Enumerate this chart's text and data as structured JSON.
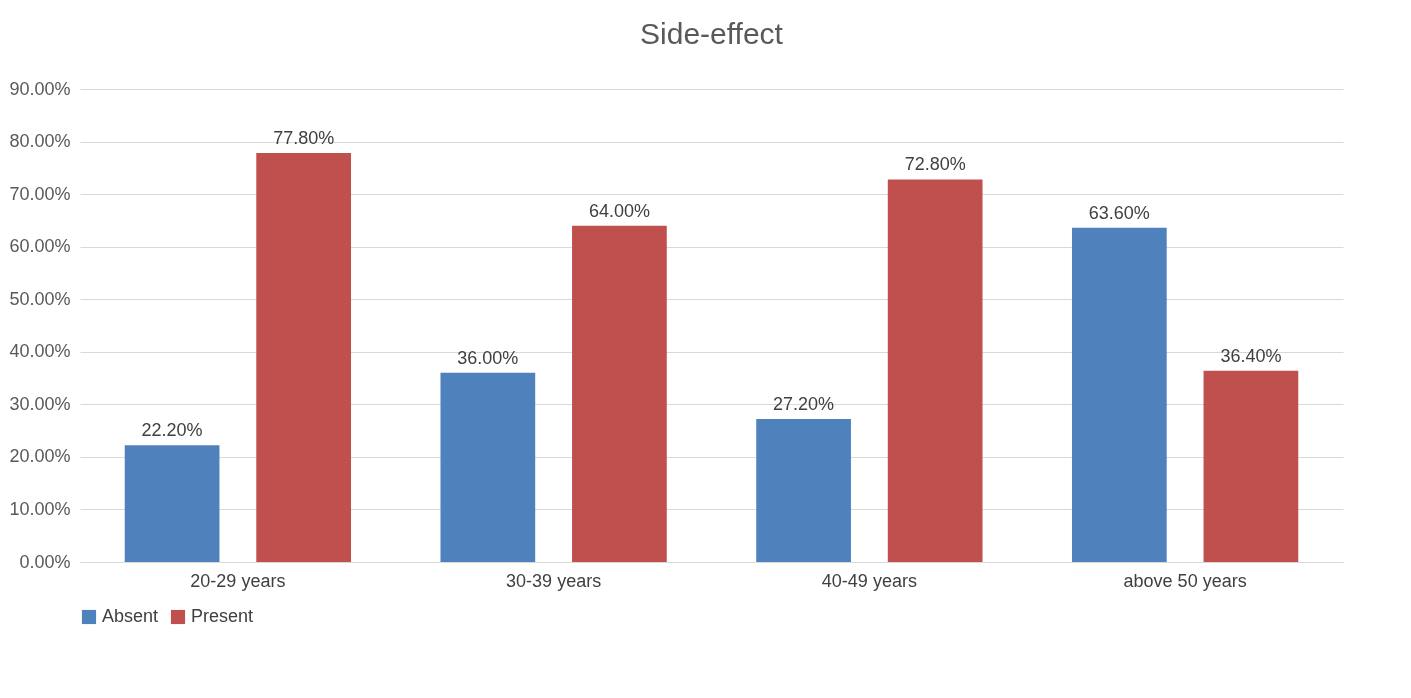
{
  "chart_data": {
    "type": "bar",
    "title": "Side-effect",
    "categories": [
      "20-29 years",
      "30-39 years",
      "40-49 years",
      "above 50 years"
    ],
    "series": [
      {
        "name": "Absent",
        "color": "#4f81bd",
        "values": [
          22.2,
          36.0,
          27.2,
          63.6
        ],
        "value_labels": [
          "22.20%",
          "36.00%",
          "27.20%",
          "63.60%"
        ]
      },
      {
        "name": "Present",
        "color": "#c0504d",
        "values": [
          77.8,
          64.0,
          72.8,
          36.4
        ],
        "value_labels": [
          "77.80%",
          "64.00%",
          "72.80%",
          "36.40%"
        ]
      }
    ],
    "ylim": [
      0,
      90
    ],
    "yticks": [
      {
        "value": 0,
        "label": "0.00%"
      },
      {
        "value": 10,
        "label": "10.00%"
      },
      {
        "value": 20,
        "label": "20.00%"
      },
      {
        "value": 30,
        "label": "30.00%"
      },
      {
        "value": 40,
        "label": "40.00%"
      },
      {
        "value": 50,
        "label": "50.00%"
      },
      {
        "value": 60,
        "label": "60.00%"
      },
      {
        "value": 70,
        "label": "70.00%"
      },
      {
        "value": 80,
        "label": "80.00%"
      },
      {
        "value": 90,
        "label": "90.00%"
      }
    ],
    "grid": "y",
    "legend": "bottom"
  }
}
